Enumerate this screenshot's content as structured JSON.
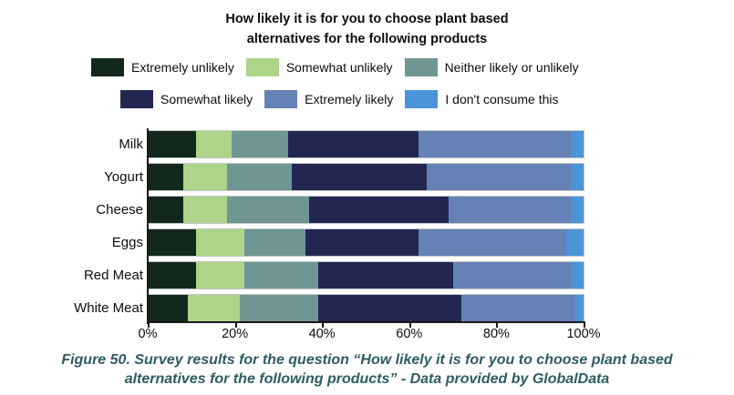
{
  "title": {
    "line1": "How likely it is for you to choose plant based",
    "line2": "alternatives for the following products"
  },
  "chart_data": {
    "type": "bar",
    "orientation": "horizontal-stacked",
    "unit": "percent",
    "title": "How likely it is for you to choose plant based alternatives for the following products",
    "categories": [
      "Milk",
      "Yogurt",
      "Cheese",
      "Eggs",
      "Red Meat",
      "White Meat"
    ],
    "series": [
      {
        "name": "Extremely unlikely",
        "color": "#12281b",
        "values": [
          11,
          8,
          8,
          11,
          11,
          9
        ]
      },
      {
        "name": "Somewhat unlikely",
        "color": "#aed489",
        "values": [
          8,
          10,
          10,
          11,
          11,
          12
        ]
      },
      {
        "name": "Neither likely or unlikely",
        "color": "#6f9693",
        "values": [
          13,
          15,
          19,
          14,
          17,
          18
        ]
      },
      {
        "name": "Somewhat likely",
        "color": "#212750",
        "values": [
          30,
          31,
          32,
          26,
          31,
          33
        ]
      },
      {
        "name": "Extremely likely",
        "color": "#6681b5",
        "values": [
          35,
          33,
          28,
          34,
          27,
          26
        ]
      },
      {
        "name": "I don't consume this",
        "color": "#4b94d8",
        "values": [
          3,
          3,
          3,
          4,
          3,
          2
        ]
      }
    ],
    "x_ticks": [
      "0%",
      "20%",
      "40%",
      "60%",
      "80%",
      "100%"
    ],
    "xlim": [
      0,
      100
    ],
    "xlabel": "",
    "ylabel": "",
    "grid": false,
    "legend_position": "top"
  },
  "caption": {
    "line1": "Figure 50. Survey results for the question “How likely it is for you to choose plant based",
    "line2": "alternatives for the following products” - Data provided by GlobalData"
  },
  "colors": {
    "background": "#ffffff",
    "axis": "#1a1a1a",
    "caption_text": "#2d5c66",
    "title_text": "#0d0d0d"
  }
}
